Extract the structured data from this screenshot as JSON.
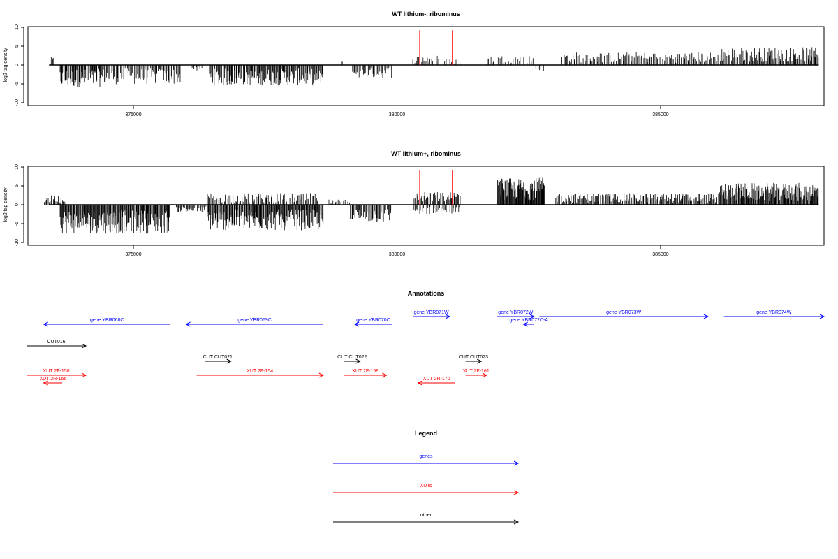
{
  "chart_data": [
    {
      "type": "bar",
      "title": "WT lithium-, ribominus",
      "xlabel": "",
      "ylabel": "log2 tag density",
      "xlim": [
        373000,
        388100
      ],
      "ylim": [
        -10,
        10
      ],
      "yticks": [
        10,
        5,
        0,
        -5,
        -10
      ],
      "xticks": [
        375000,
        380000,
        385000
      ],
      "xtick_labels": [
        "375000",
        "380000",
        "385000"
      ],
      "grid": false,
      "markers": {
        "color": "#ff0000",
        "x": [
          380430,
          381050
        ],
        "y": 9.2
      },
      "bar_color": "#000000",
      "segments": [
        {
          "from": 373400,
          "to": 373500,
          "mean": 1.2,
          "density": 0.5
        },
        {
          "from": 373600,
          "to": 374400,
          "mean": -3.5,
          "density": 1.0
        },
        {
          "from": 374400,
          "to": 375900,
          "mean": -3.0,
          "density": 0.7
        },
        {
          "from": 376100,
          "to": 376300,
          "mean": -1.0,
          "density": 0.5
        },
        {
          "from": 376450,
          "to": 378600,
          "mean": -3.2,
          "density": 1.0
        },
        {
          "from": 378900,
          "to": 379050,
          "mean": 0.6,
          "density": 0.3
        },
        {
          "from": 379150,
          "to": 379900,
          "mean": -2.0,
          "density": 0.6
        },
        {
          "from": 380300,
          "to": 380800,
          "mean": 1.5,
          "density": 0.5
        },
        {
          "from": 380900,
          "to": 381200,
          "mean": 1.0,
          "density": 0.4
        },
        {
          "from": 381700,
          "to": 382600,
          "mean": 1.5,
          "density": 0.4
        },
        {
          "from": 382600,
          "to": 382800,
          "mean": -1.0,
          "density": 0.3
        },
        {
          "from": 383100,
          "to": 386100,
          "mean": 2.0,
          "density": 0.6
        },
        {
          "from": 386100,
          "to": 388000,
          "mean": 2.8,
          "density": 0.8
        }
      ]
    },
    {
      "type": "bar",
      "title": "WT lithium+, ribominus",
      "xlabel": "",
      "ylabel": "log2 tag density",
      "xlim": [
        373000,
        388100
      ],
      "ylim": [
        -10,
        10
      ],
      "yticks": [
        10,
        5,
        0,
        -5,
        -10
      ],
      "xticks": [
        375000,
        380000,
        385000
      ],
      "xtick_labels": [
        "375000",
        "380000",
        "385000"
      ],
      "grid": false,
      "markers": {
        "color": "#ff0000",
        "x": [
          380430,
          381050
        ],
        "y": 9.2
      },
      "bar_color": "#000000",
      "segments": [
        {
          "from": 373300,
          "to": 373700,
          "mean": 1.5,
          "density": 0.7
        },
        {
          "from": 373600,
          "to": 375700,
          "mean": -4.5,
          "density": 1.2
        },
        {
          "from": 375800,
          "to": 376400,
          "mean": -1.2,
          "density": 0.8
        },
        {
          "from": 376400,
          "to": 378600,
          "mean": -4.0,
          "density": 1.2
        },
        {
          "from": 376400,
          "to": 378500,
          "mean": 1.8,
          "density": 0.6
        },
        {
          "from": 378700,
          "to": 379100,
          "mean": 0.8,
          "density": 0.4
        },
        {
          "from": 379100,
          "to": 379900,
          "mean": -2.8,
          "density": 0.8
        },
        {
          "from": 380300,
          "to": 381200,
          "mean": 2.0,
          "density": 0.8
        },
        {
          "from": 380300,
          "to": 381200,
          "mean": -1.5,
          "density": 0.5
        },
        {
          "from": 381900,
          "to": 382800,
          "mean": 4.2,
          "density": 1.6
        },
        {
          "from": 383000,
          "to": 386100,
          "mean": 1.8,
          "density": 0.8
        },
        {
          "from": 386100,
          "to": 388000,
          "mean": 3.4,
          "density": 1.2
        }
      ]
    },
    {
      "type": "annotation-track",
      "title": "Annotations",
      "xlim": [
        373000,
        388100
      ],
      "features": [
        {
          "label": "gene YBR068C",
          "start": 373300,
          "end": 375700,
          "strand": "-",
          "category": "genes",
          "row": 1
        },
        {
          "label": "gene YBR069C",
          "start": 376000,
          "end": 378600,
          "strand": "-",
          "category": "genes",
          "row": 1
        },
        {
          "label": "gene YBR070C",
          "start": 379200,
          "end": 379900,
          "strand": "-",
          "category": "genes",
          "row": 1
        },
        {
          "label": "gene YBR071W",
          "start": 380300,
          "end": 381000,
          "strand": "+",
          "category": "genes",
          "row": 0
        },
        {
          "label": "gene YBR072W",
          "start": 381900,
          "end": 382600,
          "strand": "+",
          "category": "genes",
          "row": 0
        },
        {
          "label": "gene YBR072C-A",
          "start": 382400,
          "end": 382600,
          "strand": "-",
          "category": "genes",
          "row": 1
        },
        {
          "label": "gene YBR073W",
          "start": 382700,
          "end": 385900,
          "strand": "+",
          "category": "genes",
          "row": 0
        },
        {
          "label": "gene YBR074W",
          "start": 386200,
          "end": 388100,
          "strand": "+",
          "category": "genes",
          "row": 0
        },
        {
          "label": "CUT016",
          "start": 372900,
          "end": 374100,
          "strand": "+",
          "category": "other",
          "row": 2
        },
        {
          "label": "CUT CUT021",
          "start": 376350,
          "end": 376850,
          "strand": "+",
          "category": "other",
          "row": 3
        },
        {
          "label": "CUT CUT022",
          "start": 379000,
          "end": 379300,
          "strand": "+",
          "category": "other",
          "row": 3
        },
        {
          "label": "CUT CUT023",
          "start": 381300,
          "end": 381600,
          "strand": "+",
          "category": "other",
          "row": 3
        },
        {
          "label": "XUT 2F-150",
          "start": 372900,
          "end": 374100,
          "strand": "+",
          "category": "XUTs",
          "row": 4
        },
        {
          "label": "XUT 2R-166",
          "start": 373300,
          "end": 373650,
          "strand": "-",
          "category": "XUTs",
          "row": 5
        },
        {
          "label": "XUT 2F-154",
          "start": 376200,
          "end": 378600,
          "strand": "+",
          "category": "XUTs",
          "row": 4
        },
        {
          "label": "XUT 2F-158",
          "start": 379000,
          "end": 379800,
          "strand": "+",
          "category": "XUTs",
          "row": 4
        },
        {
          "label": "XUT 2R-170",
          "start": 380400,
          "end": 381100,
          "strand": "-",
          "category": "XUTs",
          "row": 5
        },
        {
          "label": "XUT 2F-161",
          "start": 381300,
          "end": 381700,
          "strand": "+",
          "category": "XUTs",
          "row": 4
        }
      ]
    },
    {
      "type": "legend",
      "title": "Legend",
      "entries": [
        {
          "label": "genes",
          "color": "#0000ff"
        },
        {
          "label": "XUTs",
          "color": "#ff0000"
        },
        {
          "label": "other",
          "color": "#000000"
        }
      ]
    }
  ],
  "colors": {
    "genes": "#0000ff",
    "XUTs": "#ff0000",
    "other": "#000000",
    "marker": "#ff0000"
  }
}
